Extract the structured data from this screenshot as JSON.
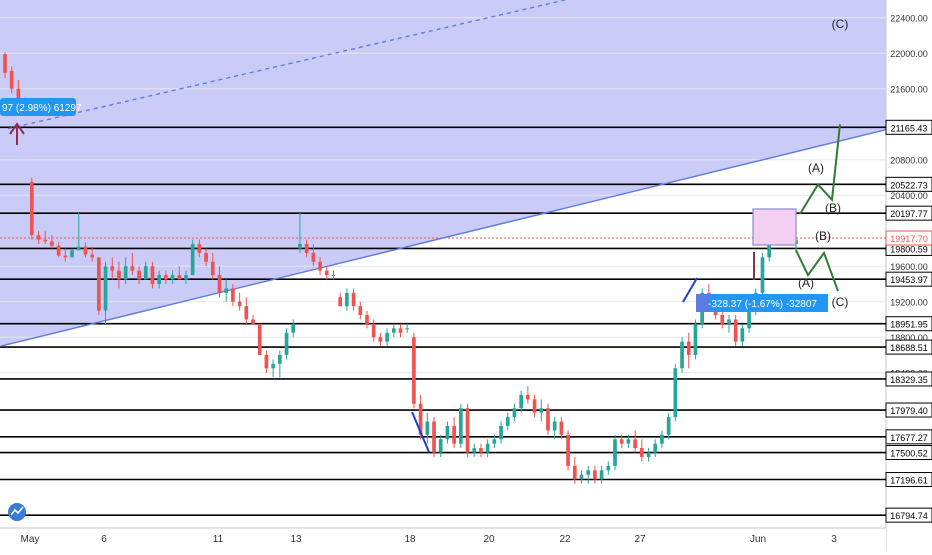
{
  "app": {
    "logo": "TradingView"
  },
  "colors": {
    "up": "#26a69a",
    "down": "#ef5350",
    "zone_fill": "#c8c8f8",
    "trend_line": "#5b7be0",
    "level_line": "#000000",
    "current_line": "#ef5350",
    "wave_green": "#2e7d32",
    "wave_blue": "#1e3fd0",
    "wave_maroon": "#8e2e52",
    "measure_fill": "#2196f3",
    "box_fill": "#f3d0f3",
    "box_stroke": "#8a8ad0"
  },
  "chart_data": {
    "type": "candlestick",
    "title": "",
    "xlabel": "",
    "ylabel": "",
    "ylim": [
      16650,
      22600
    ],
    "x_ticks": [
      "May",
      "6",
      "11",
      "13",
      "18",
      "20",
      "22",
      "27",
      "Jun",
      "3"
    ],
    "y_ticks": [
      22400,
      22000,
      21600,
      20800,
      20400,
      19600,
      19200,
      18800,
      18400
    ],
    "current_price": {
      "label": "19917.70",
      "value": 19917.7
    },
    "levels": [
      {
        "label": "21165.43",
        "value": 21165.43
      },
      {
        "label": "20522.73",
        "value": 20522.73
      },
      {
        "label": "20197.77",
        "value": 20197.77
      },
      {
        "label": "19800.59",
        "value": 19800.59
      },
      {
        "label": "19453.97",
        "value": 19453.97
      },
      {
        "label": "18951.95",
        "value": 18951.95
      },
      {
        "label": "18688.51",
        "value": 18688.51
      },
      {
        "label": "18329.35",
        "value": 18329.35
      },
      {
        "label": "17979.40",
        "value": 17979.4
      },
      {
        "label": "17677.27",
        "value": 17677.27
      },
      {
        "label": "17500.52",
        "value": 17500.52
      },
      {
        "label": "17196.61",
        "value": 17196.61
      },
      {
        "label": "16794.74",
        "value": 16794.74
      }
    ],
    "candles": [
      [
        21990,
        22010,
        21720,
        21780
      ],
      [
        21800,
        21850,
        21550,
        21600
      ],
      [
        21600,
        21700,
        21350,
        21450
      ],
      [
        21450,
        21500,
        21300,
        21350
      ],
      [
        20550,
        20600,
        19900,
        19950
      ],
      [
        19950,
        20000,
        19850,
        19900
      ],
      [
        19900,
        20000,
        19850,
        19880
      ],
      [
        19880,
        19950,
        19800,
        19830
      ],
      [
        19830,
        19870,
        19700,
        19720
      ],
      [
        19720,
        19800,
        19650,
        19700
      ],
      [
        19700,
        19800,
        19700,
        19780
      ],
      [
        19780,
        20200,
        19780,
        19820
      ],
      [
        19820,
        19870,
        19700,
        19730
      ],
      [
        19730,
        19820,
        19650,
        19700
      ],
      [
        19700,
        19650,
        19050,
        19100
      ],
      [
        19100,
        19650,
        18950,
        19600
      ],
      [
        19600,
        19700,
        19450,
        19550
      ],
      [
        19550,
        19650,
        19350,
        19450
      ],
      [
        19450,
        19700,
        19400,
        19600
      ],
      [
        19600,
        19750,
        19500,
        19550
      ],
      [
        19550,
        19600,
        19400,
        19450
      ],
      [
        19450,
        19650,
        19450,
        19600
      ],
      [
        19600,
        19650,
        19350,
        19400
      ],
      [
        19400,
        19550,
        19350,
        19500
      ],
      [
        19500,
        19550,
        19400,
        19450
      ],
      [
        19450,
        19550,
        19400,
        19500
      ],
      [
        19500,
        19600,
        19450,
        19450
      ],
      [
        19450,
        19550,
        19400,
        19500
      ],
      [
        19500,
        19900,
        19500,
        19850
      ],
      [
        19850,
        19900,
        19700,
        19750
      ],
      [
        19750,
        19800,
        19600,
        19650
      ],
      [
        19650,
        19750,
        19450,
        19500
      ],
      [
        19500,
        19600,
        19250,
        19300
      ],
      [
        19300,
        19450,
        19200,
        19350
      ],
      [
        19350,
        19400,
        19150,
        19200
      ],
      [
        19200,
        19300,
        19100,
        19150
      ],
      [
        19150,
        19250,
        18950,
        19000
      ],
      [
        19000,
        19050,
        18950,
        18950
      ],
      [
        18950,
        18950,
        18600,
        18600
      ],
      [
        18600,
        18650,
        18400,
        18450
      ],
      [
        18450,
        18550,
        18350,
        18500
      ],
      [
        18500,
        18650,
        18350,
        18600
      ],
      [
        18600,
        18900,
        18550,
        18850
      ],
      [
        18850,
        19000,
        18800,
        18950
      ],
      [
        19800,
        20200,
        19750,
        19850
      ],
      [
        19850,
        19900,
        19700,
        19750
      ],
      [
        19750,
        19850,
        19600,
        19650
      ],
      [
        19650,
        19700,
        19500,
        19550
      ],
      [
        19550,
        19600,
        19450,
        19500
      ],
      [
        19500,
        19550,
        19450,
        19500
      ],
      [
        19250,
        19300,
        19150,
        19150
      ],
      [
        19150,
        19350,
        19100,
        19300
      ],
      [
        19300,
        19350,
        19100,
        19150
      ],
      [
        19150,
        19200,
        19000,
        19050
      ],
      [
        19050,
        19100,
        18900,
        18950
      ],
      [
        18950,
        19000,
        18750,
        18800
      ],
      [
        18800,
        18850,
        18700,
        18750
      ],
      [
        18750,
        18900,
        18700,
        18850
      ],
      [
        18850,
        18950,
        18800,
        18900
      ],
      [
        18900,
        18950,
        18800,
        18850
      ],
      [
        18900,
        18950,
        18850,
        18900
      ],
      [
        18800,
        18850,
        18000,
        18050
      ],
      [
        18050,
        18150,
        17650,
        17700
      ],
      [
        17700,
        17950,
        17600,
        17850
      ],
      [
        17850,
        17900,
        17450,
        17500
      ],
      [
        17500,
        17700,
        17450,
        17650
      ],
      [
        17650,
        17850,
        17600,
        17800
      ],
      [
        17800,
        17900,
        17550,
        17600
      ],
      [
        17600,
        18050,
        17550,
        18000
      ],
      [
        18000,
        18050,
        17450,
        17500
      ],
      [
        17500,
        17600,
        17450,
        17550
      ],
      [
        17550,
        17600,
        17450,
        17500
      ],
      [
        17500,
        17650,
        17450,
        17600
      ],
      [
        17600,
        17700,
        17550,
        17650
      ],
      [
        17650,
        17850,
        17600,
        17800
      ],
      [
        17800,
        17950,
        17750,
        17900
      ],
      [
        17900,
        18050,
        17850,
        18000
      ],
      [
        18000,
        18200,
        17950,
        18150
      ],
      [
        18150,
        18250,
        18050,
        18100
      ],
      [
        18100,
        18150,
        17900,
        17950
      ],
      [
        17950,
        18100,
        17850,
        18000
      ],
      [
        18000,
        18050,
        17700,
        17750
      ],
      [
        17750,
        17900,
        17650,
        17850
      ],
      [
        17850,
        17900,
        17650,
        17700
      ],
      [
        17700,
        17750,
        17300,
        17350
      ],
      [
        17350,
        17450,
        17150,
        17200
      ],
      [
        17200,
        17300,
        17150,
        17250
      ],
      [
        17250,
        17350,
        17150,
        17300
      ],
      [
        17300,
        17350,
        17150,
        17200
      ],
      [
        17200,
        17350,
        17150,
        17300
      ],
      [
        17300,
        17400,
        17250,
        17350
      ],
      [
        17350,
        17700,
        17300,
        17650
      ],
      [
        17650,
        17700,
        17550,
        17600
      ],
      [
        17600,
        17700,
        17550,
        17650
      ],
      [
        17650,
        17750,
        17500,
        17550
      ],
      [
        17550,
        17650,
        17400,
        17450
      ],
      [
        17450,
        17550,
        17400,
        17500
      ],
      [
        17500,
        17650,
        17450,
        17600
      ],
      [
        17600,
        17750,
        17550,
        17700
      ],
      [
        17700,
        17950,
        17650,
        17900
      ],
      [
        17900,
        18500,
        17850,
        18450
      ],
      [
        18450,
        18800,
        18400,
        18750
      ],
      [
        18750,
        18850,
        18450,
        18600
      ],
      [
        18600,
        19000,
        18550,
        18950
      ],
      [
        18950,
        19350,
        18900,
        19300
      ],
      [
        19300,
        19400,
        19100,
        19150
      ],
      [
        19150,
        19250,
        19000,
        19050
      ],
      [
        19050,
        19150,
        18900,
        18950
      ],
      [
        18950,
        19050,
        18850,
        19000
      ],
      [
        19000,
        19050,
        18700,
        18750
      ],
      [
        18750,
        18950,
        18700,
        18900
      ],
      [
        18900,
        19150,
        18850,
        19100
      ],
      [
        19100,
        19350,
        19050,
        19300
      ],
      [
        19300,
        19750,
        19250,
        19700
      ],
      [
        19700,
        20150,
        19650,
        20100
      ],
      [
        20100,
        20200,
        19950,
        20000
      ],
      [
        20000,
        20150,
        19900,
        20100
      ],
      [
        20100,
        20100,
        19850,
        19850
      ],
      [
        19850,
        19950,
        19750,
        19900
      ]
    ],
    "trend_lines": [
      {
        "from": [
          1,
          18700
        ],
        "to": [
          890,
          21150
        ],
        "dashed": false
      },
      {
        "from": [
          8,
          21150
        ],
        "to": [
          565,
          22600
        ],
        "dashed": true
      }
    ],
    "waves": [
      {
        "labels": [
          "(A)",
          "(B)",
          "(C)"
        ],
        "points": [
          [
            800,
            20190
          ],
          [
            818,
            20520
          ],
          [
            832,
            20350
          ],
          [
            840,
            21200
          ]
        ]
      },
      {
        "labels": [
          "(A)",
          "(B)",
          "(C)"
        ],
        "points": [
          [
            796,
            19780
          ],
          [
            808,
            19500
          ],
          [
            824,
            19750
          ],
          [
            838,
            19320
          ]
        ]
      }
    ],
    "annotations": [
      {
        "type": "measure",
        "label": "97 (2.98%) 61297"
      },
      {
        "type": "measure",
        "label": "-328.37 (-1.67%) -32807"
      },
      {
        "type": "box",
        "label": ""
      }
    ]
  }
}
